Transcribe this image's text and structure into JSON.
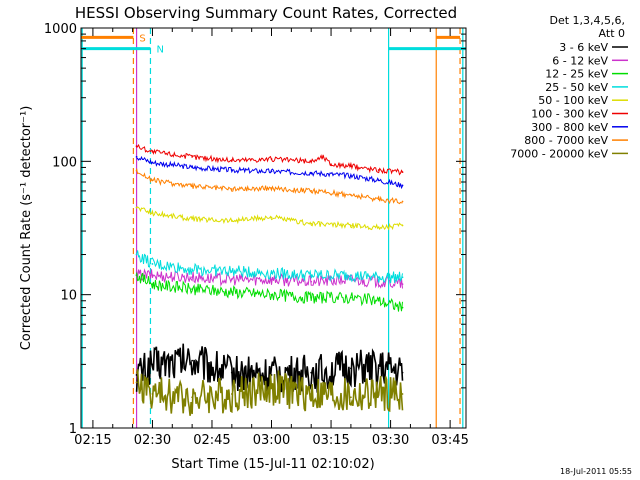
{
  "chart_data": {
    "type": "line",
    "title": "HESSI Observing Summary Count Rates, Corrected",
    "xlabel": "Start Time (15-Jul-11 02:10:02)",
    "ylabel": "Corrected Count Rate (s⁻¹ detector⁻¹)",
    "y_scale": "log",
    "ylim": [
      1,
      1000
    ],
    "xlim_minutes": [
      2.0,
      99.0
    ],
    "x_ticks": [
      {
        "minutes": 5,
        "label": "02:15"
      },
      {
        "minutes": 20,
        "label": "02:30"
      },
      {
        "minutes": 35,
        "label": "02:45"
      },
      {
        "minutes": 50,
        "label": "03:00"
      },
      {
        "minutes": 65,
        "label": "03:15"
      },
      {
        "minutes": 80,
        "label": "03:30"
      },
      {
        "minutes": 95,
        "label": "03:45"
      }
    ],
    "y_ticks": [
      {
        "value": 1,
        "label": "1"
      },
      {
        "value": 10,
        "label": "10"
      },
      {
        "value": 100,
        "label": "100"
      },
      {
        "value": 1000,
        "label": "1000"
      }
    ],
    "legend_header": [
      "Det 1,3,4,5,6,",
      "Att 0"
    ],
    "legend_position": "right",
    "series": [
      {
        "name": "3 - 6 keV",
        "color": "#000000",
        "x": [
          16,
          20,
          30,
          40,
          50,
          60,
          70,
          77,
          83
        ],
        "y": [
          2.5,
          3.0,
          3.2,
          2.6,
          2.5,
          2.6,
          2.8,
          2.8,
          2.6
        ]
      },
      {
        "name": "6 - 12 keV",
        "color": "#cc33cc",
        "x": [
          16,
          20,
          30,
          40,
          50,
          60,
          70,
          77,
          83
        ],
        "y": [
          14,
          14,
          13.5,
          13,
          13,
          12.5,
          13,
          12.5,
          12
        ]
      },
      {
        "name": "12 - 25 keV",
        "color": "#00dd00",
        "x": [
          16,
          20,
          30,
          40,
          50,
          60,
          70,
          77,
          83
        ],
        "y": [
          14,
          12,
          11,
          10.5,
          10,
          9.5,
          9.5,
          9,
          8
        ]
      },
      {
        "name": "25 - 50 keV",
        "color": "#00dddd",
        "x": [
          16,
          20,
          30,
          40,
          50,
          60,
          70,
          77,
          83
        ],
        "y": [
          20,
          17,
          15.5,
          15,
          14.5,
          14,
          14,
          13.5,
          13.5
        ]
      },
      {
        "name": "50 - 100 keV",
        "color": "#dddd00",
        "x": [
          16,
          20,
          30,
          40,
          50,
          60,
          70,
          77,
          83
        ],
        "y": [
          45,
          41,
          37,
          36,
          38,
          34,
          33,
          32,
          33
        ]
      },
      {
        "name": "100 - 300 keV",
        "color": "#ee0000",
        "x": [
          16,
          20,
          30,
          40,
          50,
          60,
          63,
          65,
          70,
          77,
          83
        ],
        "y": [
          130,
          118,
          108,
          102,
          104,
          100,
          108,
          95,
          92,
          86,
          83
        ]
      },
      {
        "name": "300 - 800 keV",
        "color": "#0000ee",
        "x": [
          16,
          20,
          30,
          40,
          50,
          60,
          70,
          77,
          83
        ],
        "y": [
          108,
          98,
          90,
          86,
          84,
          82,
          78,
          72,
          66
        ]
      },
      {
        "name": "800 - 7000 keV",
        "color": "#ff8000",
        "x": [
          16,
          20,
          30,
          40,
          50,
          60,
          70,
          77,
          83
        ],
        "y": [
          85,
          72,
          65,
          62,
          63,
          60,
          56,
          52,
          50
        ]
      },
      {
        "name": "7000 - 20000 keV",
        "color": "#808000",
        "x": [
          16,
          20,
          30,
          40,
          50,
          60,
          70,
          77,
          83
        ],
        "y": [
          2.2,
          1.8,
          1.7,
          1.8,
          2.0,
          1.8,
          1.7,
          1.8,
          1.8
        ]
      }
    ],
    "vertical_markers": [
      {
        "minutes": 2.3,
        "color": "#00dddd",
        "style": "solid"
      },
      {
        "minutes": 15.2,
        "color": "#ff8000",
        "style": "dashed"
      },
      {
        "minutes": 16.0,
        "color": "#cc33cc",
        "style": "solid"
      },
      {
        "minutes": 19.5,
        "color": "#00dddd",
        "style": "dashed"
      },
      {
        "minutes": 79.5,
        "color": "#00dddd",
        "style": "solid"
      },
      {
        "minutes": 91.5,
        "color": "#ff8000",
        "style": "solid"
      },
      {
        "minutes": 97.5,
        "color": "#ff8000",
        "style": "dashed"
      },
      {
        "minutes": 98.2,
        "color": "#00dddd",
        "style": "solid"
      }
    ],
    "flag_bars": [
      {
        "label": "S",
        "color": "#ff8000",
        "segments": [
          [
            2.0,
            15.2
          ],
          [
            91.5,
            97.5
          ]
        ],
        "level": 850
      },
      {
        "label": "N",
        "color": "#00dddd",
        "segments": [
          [
            2.0,
            19.5
          ],
          [
            79.5,
            99.0
          ]
        ],
        "level": 700
      }
    ],
    "timestamp": "18-Jul-2011 05:55"
  }
}
